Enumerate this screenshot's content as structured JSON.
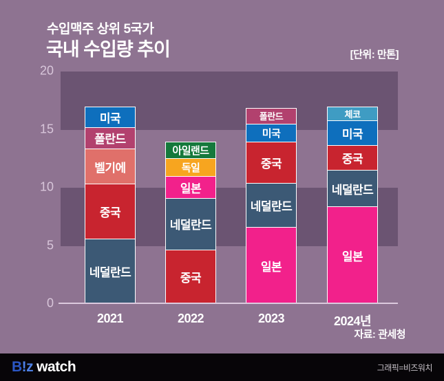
{
  "header": {
    "title_line1": "수입맥주 상위 5국가",
    "title_line2": "국내 수입량 추이",
    "unit_label": "[단위: 만톤]"
  },
  "chart_data": {
    "type": "bar",
    "stacked": true,
    "title": "수입맥주 상위 5국가 국내 수입량 추이",
    "unit": "만톤",
    "ylim": [
      0,
      20
    ],
    "yticks": [
      0,
      5,
      10,
      15,
      20
    ],
    "grid": "alternating horizontal bands (5-10 and 15-20 darker)",
    "legend_position": "none (labels inside segments)",
    "categories": [
      "2021",
      "2022",
      "2023",
      "2024년"
    ],
    "bars": [
      {
        "category": "2021",
        "total": 17.2,
        "segments_top_to_bottom": [
          {
            "label": "미국",
            "value": 1.8,
            "color": "#0e6fbd"
          },
          {
            "label": "폴란드",
            "value": 1.9,
            "color": "#b2416e"
          },
          {
            "label": "벨기에",
            "value": 3.1,
            "color": "#e0706a"
          },
          {
            "label": "중국",
            "value": 4.8,
            "color": "#c8242f"
          },
          {
            "label": "네덜란드",
            "value": 5.6,
            "color": "#3c5975"
          }
        ]
      },
      {
        "category": "2022",
        "total": 14.2,
        "segments_top_to_bottom": [
          {
            "label": "아일랜드",
            "value": 1.5,
            "color": "#15793c"
          },
          {
            "label": "독일",
            "value": 1.6,
            "color": "#f7a51f"
          },
          {
            "label": "일본",
            "value": 1.9,
            "color": "#f2218b"
          },
          {
            "label": "네덜란드",
            "value": 4.5,
            "color": "#3c5975"
          },
          {
            "label": "중국",
            "value": 4.7,
            "color": "#c8242f"
          }
        ]
      },
      {
        "category": "2023",
        "total": 17.1,
        "segments_top_to_bottom": [
          {
            "label": "폴란드",
            "value": 1.4,
            "color": "#b2416e"
          },
          {
            "label": "미국",
            "value": 1.6,
            "color": "#0e6fbd"
          },
          {
            "label": "중국",
            "value": 3.6,
            "color": "#c8242f"
          },
          {
            "label": "네덜란드",
            "value": 3.9,
            "color": "#3c5975"
          },
          {
            "label": "일본",
            "value": 6.6,
            "color": "#f2218b"
          }
        ]
      },
      {
        "category": "2024년",
        "total": 17.2,
        "segments_top_to_bottom": [
          {
            "label": "체코",
            "value": 1.2,
            "color": "#3f9cc3"
          },
          {
            "label": "미국",
            "value": 2.2,
            "color": "#0e6fbd"
          },
          {
            "label": "중국",
            "value": 2.2,
            "color": "#c8242f"
          },
          {
            "label": "네덜란드",
            "value": 3.2,
            "color": "#3c5975"
          },
          {
            "label": "일본",
            "value": 8.4,
            "color": "#f2218b"
          }
        ]
      }
    ]
  },
  "source": "자료: 관세청",
  "footer": {
    "logo_b": "B",
    "logo_bang": "!",
    "logo_z": "z",
    "logo_watch": "watch",
    "credit": "그래픽=비즈워치"
  },
  "colors": {
    "background": "#8e7391",
    "band": "#6b5472",
    "axis_line": "#dccade",
    "y_tick_text": "#d8c6da",
    "text_white": "#ffffff",
    "footer_bg": "#070508",
    "credit_text": "#c6c0c7",
    "logo_b": "#2b57c5",
    "logo_bang": "#4d80e4",
    "logo_z": "#4d80e4"
  }
}
